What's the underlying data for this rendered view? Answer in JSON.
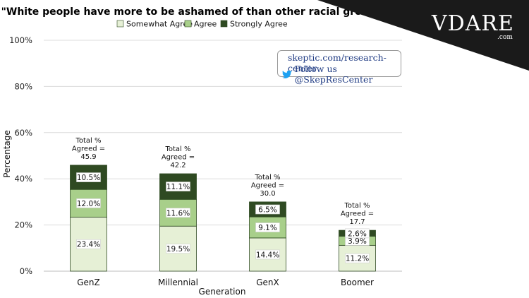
{
  "brand": {
    "name": "VDARE",
    "suffix": ".com"
  },
  "source_box": {
    "url": "skeptic.com/research-center",
    "follow": "Follow us @SkepResCenter"
  },
  "chart_data": {
    "type": "bar",
    "stacked": true,
    "title": "\"White people have more to be ashamed of than other racial groups\"",
    "xlabel": "Generation",
    "ylabel": "Percentage",
    "ylim": [
      0,
      100
    ],
    "yticks": [
      "0%",
      "20%",
      "40%",
      "60%",
      "80%",
      "100%"
    ],
    "yticks_values": [
      0,
      20,
      40,
      60,
      80,
      100
    ],
    "grid": true,
    "legend_placement": "top-center",
    "categories": [
      "GenZ",
      "Millennial",
      "GenX",
      "Boomer"
    ],
    "series": [
      {
        "name": "Somewhat Agree",
        "color": "#e6f0d6",
        "values": [
          23.4,
          19.5,
          14.4,
          11.2
        ],
        "labels": [
          "23.4%",
          "19.5%",
          "14.4%",
          "11.2%"
        ]
      },
      {
        "name": "Agree",
        "color": "#a8cf8a",
        "values": [
          12.0,
          11.6,
          9.1,
          3.9
        ],
        "labels": [
          "12.0%",
          "11.6%",
          "9.1%",
          "3.9%"
        ]
      },
      {
        "name": "Strongly Agree",
        "color": "#2f4a22",
        "values": [
          10.5,
          11.1,
          6.5,
          2.6
        ],
        "labels": [
          "10.5%",
          "11.1%",
          "6.5%",
          "2.6%"
        ]
      }
    ],
    "totals": [
      {
        "l1": "Total %",
        "l2": "Agreed =",
        "l3": "45.9",
        "value": 45.9
      },
      {
        "l1": "Total %",
        "l2": "Agreed =",
        "l3": "42.2",
        "value": 42.2
      },
      {
        "l1": "Total %",
        "l2": "Agreed =",
        "l3": "30.0",
        "value": 30.0
      },
      {
        "l1": "Total %",
        "l2": "Agreed =",
        "l3": "17.7",
        "value": 17.7
      }
    ]
  }
}
